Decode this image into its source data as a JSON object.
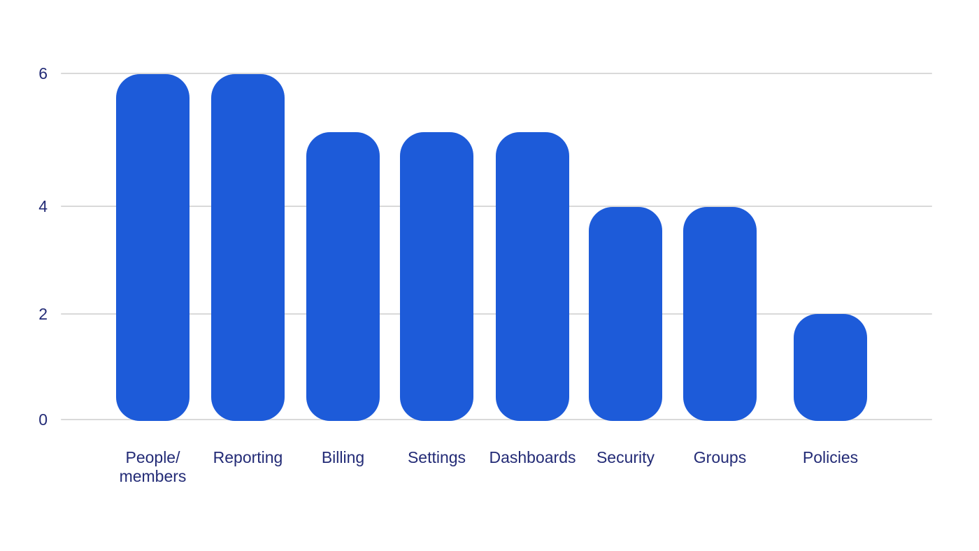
{
  "chart_data": {
    "type": "bar",
    "title": "",
    "xlabel": "",
    "ylabel": "",
    "categories": [
      "People/\nmembers",
      "Reporting",
      "Billing",
      "Settings",
      "Dashboards",
      "Security",
      "Groups",
      "Policies"
    ],
    "values": [
      6,
      6,
      5,
      5,
      5,
      4,
      4,
      2
    ],
    "y_ticks": [
      0,
      2,
      4,
      6
    ],
    "ylim": [
      0,
      6.5
    ],
    "grid": "horizontal",
    "legend": "none",
    "colors": {
      "bar": "#1d5bd9",
      "axis_label": "#232b76",
      "gridline": "#d9d9d9",
      "background": "#ffffff"
    }
  }
}
